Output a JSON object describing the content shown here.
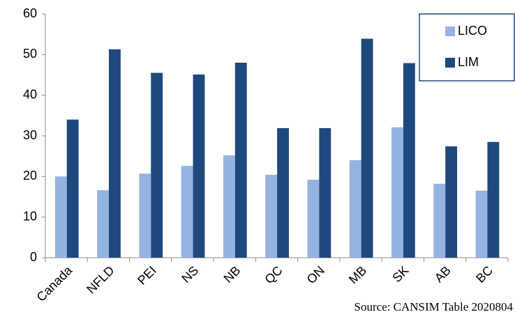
{
  "chart_data": {
    "type": "bar",
    "categories": [
      "Canada",
      "NFLD",
      "PEI",
      "NS",
      "NB",
      "QC",
      "ON",
      "MB",
      "SK",
      "AB",
      "BC"
    ],
    "series": [
      {
        "name": "LICO",
        "color": "#95b3e0",
        "values": [
          20,
          16.6,
          20.7,
          22.6,
          25.2,
          20.4,
          19.2,
          24,
          32.1,
          18.2,
          16.5
        ]
      },
      {
        "name": "LIM",
        "color": "#1f497d",
        "values": [
          34,
          51.3,
          45.5,
          45.1,
          48,
          31.9,
          31.9,
          53.9,
          47.9,
          27.4,
          28.5
        ]
      }
    ],
    "ylim": [
      0,
      60
    ],
    "yticks": [
      0,
      10,
      20,
      30,
      40,
      50,
      60
    ],
    "grid": false,
    "legend": "top-right",
    "annotation": "Source: CANSIM Table 2020804"
  }
}
